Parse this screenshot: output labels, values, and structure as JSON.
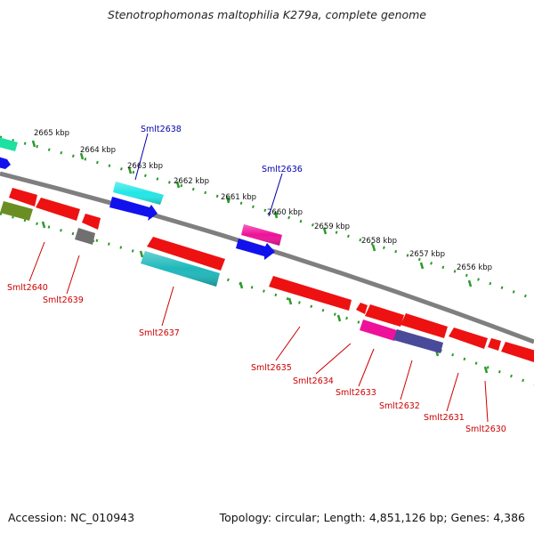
{
  "title": "Stenotrophomonas maltophilia K279a, complete genome",
  "footer": {
    "accession": "Accession: NC_010943",
    "summary": "Topology: circular; Length: 4,851,126 bp; Genes: 4,386"
  },
  "colors": {
    "backbone": "#7f7f7f",
    "track_dots": "#2a9a2a",
    "forward_label": "#0000aa",
    "reverse_label": "#cc0000",
    "red": "#ee1111",
    "blue": "#1111ee",
    "cyan": "#22e6e6",
    "teal": "#1eb8bb",
    "magenta": "#ee1199",
    "olive": "#6b8e23",
    "gray": "#707070",
    "navy": "#4a4a9a",
    "mint": "#1ee0a0"
  },
  "kbp_ticks": [
    "2665 kbp",
    "2664 kbp",
    "2663 kbp",
    "2662 kbp",
    "2661 kbp",
    "2660 kbp",
    "2659 kbp",
    "2658 kbp",
    "2657 kbp",
    "2656 kbp"
  ],
  "forward_genes": [
    {
      "label": "Smlt2638",
      "color": "blue"
    },
    {
      "label": "Smlt2636",
      "color": "blue"
    }
  ],
  "reverse_genes": [
    {
      "label": "Smlt2640",
      "color": "red"
    },
    {
      "label": "Smlt2639",
      "color": "red"
    },
    {
      "label": "Smlt2637",
      "color": "red"
    },
    {
      "label": "Smlt2635",
      "color": "red"
    },
    {
      "label": "Smlt2634",
      "color": "red"
    },
    {
      "label": "Smlt2633",
      "color": "red"
    },
    {
      "label": "Smlt2632",
      "color": "red"
    },
    {
      "label": "Smlt2631",
      "color": "red"
    },
    {
      "label": "Smlt2630",
      "color": "red"
    }
  ]
}
